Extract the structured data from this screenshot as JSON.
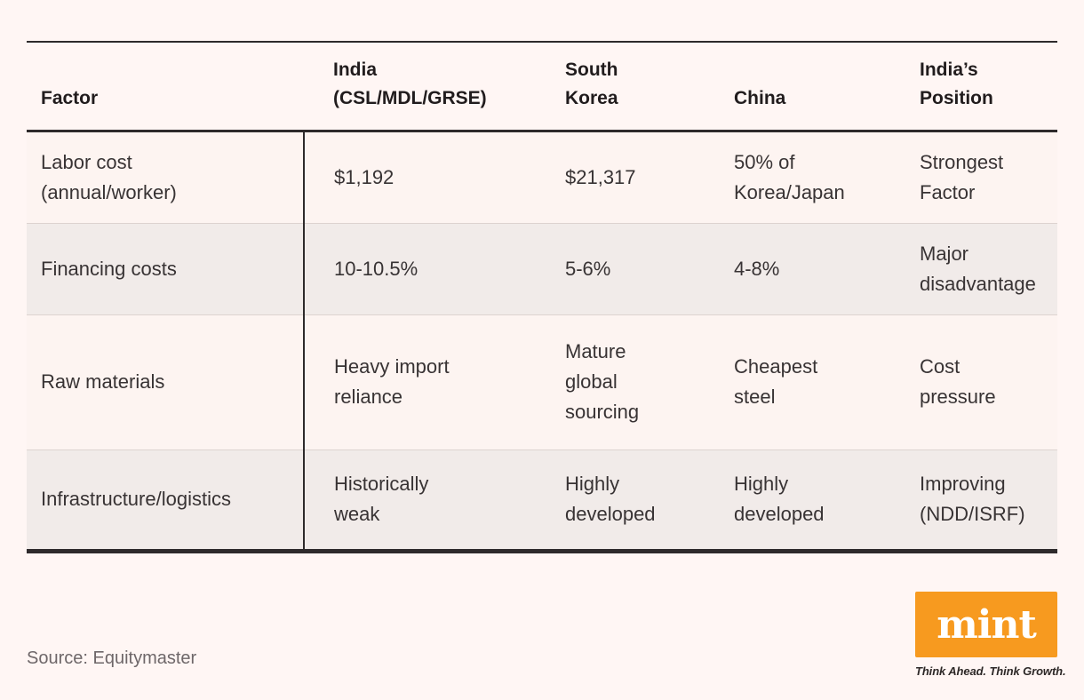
{
  "chart_data": {
    "type": "table",
    "columns": [
      "Factor",
      "India\n(CSL/MDL/GRSE)",
      "South\nKorea",
      "China",
      "India’s\nPosition"
    ],
    "rows": [
      [
        "Labor cost\n(annual/worker)",
        "$1,192",
        "$21,317",
        "50% of\nKorea/Japan",
        "Strongest\nFactor"
      ],
      [
        "Financing costs",
        "10-10.5%",
        "5-6%",
        "4-8%",
        "Major\ndisadvantage"
      ],
      [
        "Raw materials",
        "Heavy import\nreliance",
        "Mature\nglobal\nsourcing",
        "Cheapest\nsteel",
        "Cost\npressure"
      ],
      [
        "Infrastructure/logistics",
        "Historically\nweak",
        "Highly\ndeveloped",
        "Highly\ndeveloped",
        "Improving\n(NDD/ISRF)"
      ]
    ],
    "layout": {
      "shaded_row_indexes": [
        1,
        3
      ],
      "divider_after_column": "Factor"
    }
  },
  "footer": {
    "source": "Source: Equitymaster"
  },
  "branding": {
    "logo_text": "mint",
    "tagline": "Think Ahead. Think Growth.",
    "logo_background": "#f79a1f",
    "logo_text_color": "#ffffff"
  },
  "colors": {
    "page_background": "#fff6f4",
    "row_light": "#fdf4f1",
    "row_shaded": "#f1ebe9",
    "border_dark": "#2e2a2b",
    "row_divider_line": "#ddd3d0",
    "text_primary": "#383334",
    "text_header": "#211c1d",
    "text_muted": "#6e6769"
  }
}
